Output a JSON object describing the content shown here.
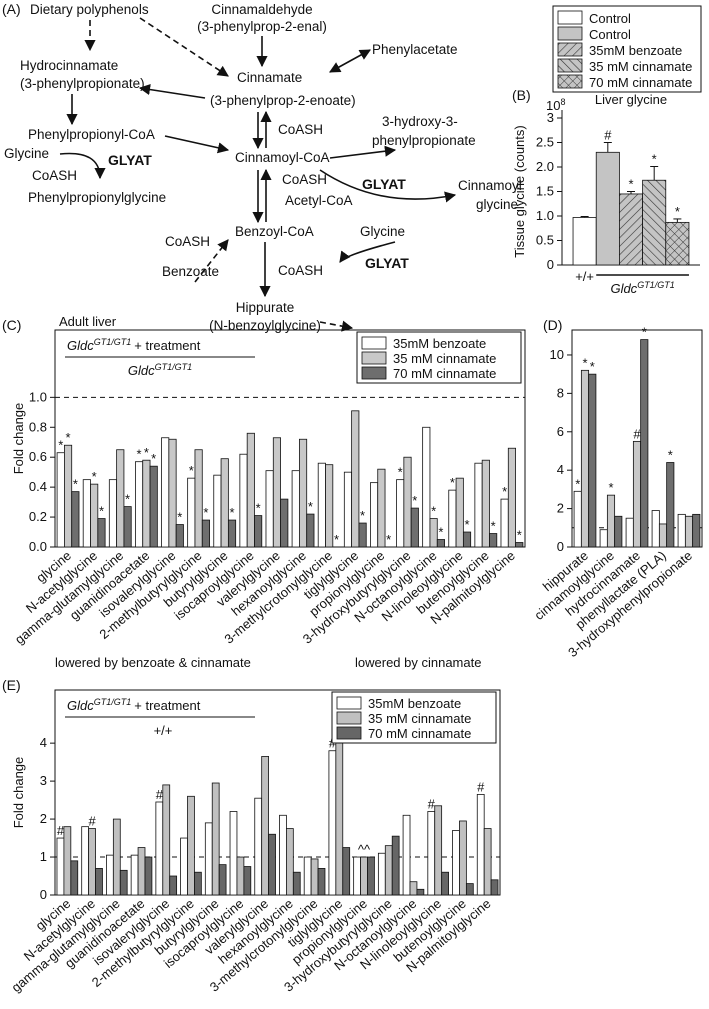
{
  "diagram": {
    "panel_label": "(A)",
    "nodes": [
      "Dietary polyphenols",
      "Cinnamaldehyde",
      "(3-phenylprop-2-enal)",
      "Phenylacetate",
      "Hydrocinnamate",
      "(3-phenylpropionate)",
      "Cinnamate",
      "(3-phenylprop-2-enoate)",
      "Phenylpropionyl-CoA",
      "Glycine",
      "GLYAT",
      "CoASH",
      "Phenylpropionylglycine",
      "CoASH",
      "3-hydroxy-3-",
      "phenylpropionate",
      "Cinnamoyl-CoA",
      "CoASH",
      "GLYAT",
      "Acetyl-CoA",
      "Cinnamoyl",
      "glycine",
      "Benzoyl-CoA",
      "CoASH",
      "Glycine",
      "Benzoate",
      "CoASH",
      "GLYAT",
      "Hippurate",
      "(N-benzoylglycine)"
    ]
  },
  "chart_data": [
    {
      "type": "bar",
      "panel_label": "(B)",
      "title": "Liver glycine",
      "ylabel": "Tissue glycine (counts)",
      "y_multiplier": {
        "base": "10",
        "exponent": "8"
      },
      "legend": "outside-top",
      "frame": false,
      "group_labels": [
        {
          "text": "+/+"
        },
        {
          "gene": "Gldc",
          "genotype": "GT1/GT1"
        }
      ],
      "series": [
        {
          "name": "Control",
          "color": "#ffffff",
          "hatch": "none",
          "values": [
            0.97
          ],
          "errors": [
            0.02
          ],
          "annotations": [
            null
          ]
        },
        {
          "name": "Control",
          "color": "#c4c4c4",
          "hatch": "none",
          "values": [
            2.3
          ],
          "errors": [
            0.2
          ],
          "annotations": [
            "#"
          ]
        },
        {
          "name": "35mM benzoate",
          "color": "#c4c4c4",
          "hatch": "forward",
          "values": [
            1.45
          ],
          "errors": [
            0.05
          ],
          "annotations": [
            "*"
          ]
        },
        {
          "name": "35 mM cinnamate",
          "color": "#c4c4c4",
          "hatch": "backward",
          "values": [
            1.73
          ],
          "errors": [
            0.28
          ],
          "annotations": [
            "*"
          ]
        },
        {
          "name": "70 mM cinnamate",
          "color": "#c4c4c4",
          "hatch": "cross",
          "values": [
            0.87
          ],
          "errors": [
            0.07
          ],
          "annotations": [
            "*"
          ]
        }
      ],
      "ylim": [
        0,
        3
      ],
      "yticks": [
        0,
        0.5,
        {
          "value": 1,
          "label": "1.0"
        },
        1.5,
        {
          "value": 2,
          "label": "2.0"
        },
        2.5,
        3
      ]
    },
    {
      "type": "bar",
      "panel_label": "(C)",
      "ylabel": "Fold change",
      "legend": "top-right",
      "frame": true,
      "header": {
        "note": "Adult liver",
        "numerator": {
          "gene": "Gldc",
          "genotype": "GT1/GT1",
          "text": "+ treatment"
        },
        "denominator": {
          "gene": "Gldc",
          "genotype": "GT1/GT1"
        }
      },
      "reference_line": 1,
      "categories": [
        "glycine",
        "N-acetylglycine",
        "gamma-glutamylglycine",
        "guanidinoacetate",
        "isovalerylglycine",
        "2-methylbutyrylglycine",
        "butyrylglycine",
        "isocaproylglycine",
        "valerylglycine",
        "hexanoylglycine",
        "3-methylcrotonylglycine",
        "tiglylglycine",
        "propionylglycine",
        "3-hydroxybutyrylglycine",
        "N-octanoylglycine",
        "N-linoleoylglycine",
        "butenoylglycine",
        "N-palmitoylglycine"
      ],
      "category_colors": [
        "#1f9a2c",
        "#1f9a2c",
        "#1f9a2c",
        "#1f9a2c",
        "#1f9a2c",
        "#1f9a2c",
        "#2b3fd6",
        "#1f9a2c",
        "#111111",
        "#2b3fd6",
        "#2b3fd6",
        "#2b3fd6",
        "#2b3fd6",
        "#1f9a2c",
        "#2b3fd6",
        "#2b3fd6",
        "#2b3fd6",
        "#1f9a2c"
      ],
      "series": [
        {
          "name": "35mM benzoate",
          "color": "#ffffff",
          "hatch": "none",
          "values": [
            0.63,
            0.45,
            0.45,
            0.57,
            0.73,
            0.46,
            0.48,
            0.62,
            0.51,
            0.51,
            0.56,
            0.5,
            0.43,
            0.45,
            0.8,
            0.38,
            0.56,
            0.32
          ],
          "annotations": [
            "*",
            null,
            null,
            "*",
            null,
            "*",
            null,
            null,
            null,
            null,
            null,
            null,
            null,
            "*",
            null,
            "*",
            null,
            "*"
          ]
        },
        {
          "name": "35 mM cinnamate",
          "color": "#c8c8c8",
          "hatch": "none",
          "values": [
            0.68,
            0.42,
            0.65,
            0.58,
            0.72,
            0.65,
            0.59,
            0.76,
            0.73,
            0.72,
            0.55,
            0.91,
            0.52,
            0.6,
            0.19,
            0.46,
            0.58,
            0.66
          ],
          "annotations": [
            "*",
            "*",
            null,
            "*",
            null,
            null,
            null,
            null,
            null,
            null,
            null,
            null,
            null,
            null,
            "*",
            null,
            null,
            null
          ]
        },
        {
          "name": "70 mM cinnamate",
          "color": "#6e6e6e",
          "hatch": "none",
          "values": [
            0.37,
            0.19,
            0.27,
            0.54,
            0.15,
            0.18,
            0.18,
            0.21,
            0.32,
            0.22,
            0,
            0.16,
            0,
            0.26,
            0.05,
            0.1,
            0.09,
            0.03
          ],
          "annotations": [
            "*",
            "*",
            "*",
            "*",
            "*",
            "*",
            "*",
            "*",
            null,
            "*",
            "*",
            "*",
            "*",
            "*",
            "*",
            "*",
            "*",
            "*"
          ]
        }
      ],
      "ylim": [
        0,
        1.45
      ],
      "yticks": [
        {
          "value": 0,
          "label": "0.0"
        },
        0.2,
        0.4,
        0.6,
        0.8,
        {
          "value": 1,
          "label": "1.0"
        }
      ],
      "notes": [
        {
          "text": "lowered by benzoate & cinnamate",
          "color": "#1f9a2c"
        },
        {
          "text": "lowered by cinnamate",
          "color": "#2b3fd6"
        }
      ]
    },
    {
      "type": "bar",
      "panel_label": "(D)",
      "legend": "none",
      "frame": true,
      "reference_line": 1,
      "categories": [
        "hippurate",
        "cinnamoylglycine",
        "hydrocinnamate",
        "phenyllactate (PLA)",
        "3-hydroxyphenylpropionate"
      ],
      "series": [
        {
          "name": "35mM benzoate",
          "color": "#ffffff",
          "hatch": "none",
          "values": [
            2.9,
            0.9,
            1.5,
            1.9,
            1.7
          ],
          "annotations": [
            "*",
            null,
            null,
            null,
            null
          ]
        },
        {
          "name": "35 mM cinnamate",
          "color": "#c8c8c8",
          "hatch": "none",
          "values": [
            9.2,
            2.7,
            5.5,
            1.2,
            1.6
          ],
          "annotations": [
            "*",
            "*",
            "#",
            null,
            null
          ]
        },
        {
          "name": "70 mM cinnamate",
          "color": "#6e6e6e",
          "hatch": "none",
          "values": [
            9.0,
            1.6,
            10.8,
            4.4,
            1.7
          ],
          "annotations": [
            "*",
            null,
            "*",
            "*",
            null
          ]
        }
      ],
      "ylim": [
        0,
        11.3
      ],
      "yticks": [
        0,
        2,
        4,
        6,
        8,
        10
      ]
    },
    {
      "type": "bar",
      "panel_label": "(E)",
      "ylabel": "Fold change",
      "legend": "top-right",
      "frame": true,
      "header": {
        "numerator": {
          "gene": "Gldc",
          "genotype": "GT1/GT1",
          "text": "+ treatment"
        },
        "denominator": {
          "text": "+/+"
        }
      },
      "reference_line": 1,
      "categories": [
        "glycine",
        "N-acetylglycine",
        "gamma-glutamylglycine",
        "guanidinoacetate",
        "isovalerylglycine",
        "2-methylbutyrylglycine",
        "butyrylglycine",
        "isocaproylglycine",
        "valerylglycine",
        "hexanoylglycine",
        "3-methylcrotonylglycine",
        "tiglylglycine",
        "propionylglycine",
        "3-hydroxybutyrylglycine",
        "N-octanoylglycine",
        "N-linoleoylglycine",
        "butenoylglycine",
        "N-palmitoylglycine"
      ],
      "category_colors": [
        "#2b3fd6",
        "#2b3fd6",
        "#1f9a2c",
        "#1f9a2c",
        "#2b3fd6",
        "#2b3fd6",
        "#1f9a2c",
        "#1f9a2c",
        "#1f9a2c",
        "#1f9a2c",
        "#1f9a2c",
        "#1f9a2c",
        "#2b3fd6",
        "#2b3fd6",
        "#1f9a2c",
        "#2b3fd6",
        "#2b3fd6",
        "#2b3fd6"
      ],
      "series": [
        {
          "name": "35mM benzoate",
          "color": "#ffffff",
          "hatch": "none",
          "values": [
            1.5,
            1.8,
            1.05,
            1.05,
            2.45,
            1.5,
            1.9,
            2.2,
            2.55,
            2.1,
            1.0,
            3.8,
            1.0,
            1.1,
            2.1,
            2.2,
            1.7,
            2.65
          ],
          "annotations": [
            "#",
            null,
            null,
            null,
            "#",
            null,
            null,
            null,
            null,
            null,
            null,
            "#",
            null,
            null,
            null,
            "#",
            null,
            "#"
          ]
        },
        {
          "name": "35 mM cinnamate",
          "color": "#c0c0c0",
          "hatch": "none",
          "values": [
            1.8,
            1.75,
            2.0,
            1.25,
            2.9,
            2.6,
            2.95,
            1.0,
            3.65,
            1.75,
            0.95,
            4.1,
            1.0,
            1.3,
            0.35,
            2.35,
            1.95,
            1.75
          ],
          "annotations": [
            null,
            "#",
            null,
            null,
            null,
            null,
            null,
            null,
            null,
            null,
            null,
            null,
            "^^",
            null,
            null,
            null,
            null,
            null
          ]
        },
        {
          "name": "70 mM cinnamate",
          "color": "#666666",
          "hatch": "none",
          "values": [
            0.9,
            0.7,
            0.65,
            1.0,
            0.5,
            0.6,
            0.8,
            0.75,
            1.6,
            0.6,
            0.7,
            1.25,
            1.0,
            1.55,
            0.15,
            0.6,
            0.3,
            0.4
          ],
          "annotations": [
            null,
            null,
            null,
            null,
            null,
            null,
            null,
            null,
            null,
            null,
            null,
            null,
            null,
            null,
            null,
            null,
            null,
            null
          ]
        }
      ],
      "ylim": [
        0,
        5.4
      ],
      "yticks": [
        0,
        1,
        2,
        3,
        4
      ]
    }
  ]
}
